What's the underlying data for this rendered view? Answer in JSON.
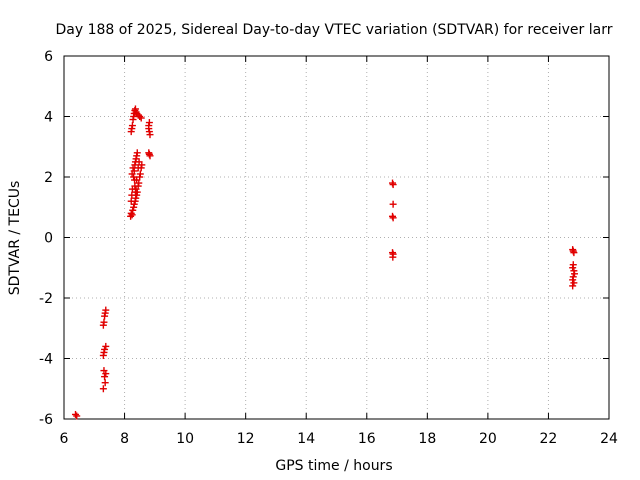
{
  "chart_data": {
    "type": "scatter",
    "title": "Day 188 of 2025, Sidereal Day-to-day VTEC variation (SDTVAR) for receiver larr",
    "xlabel": "GPS time / hours",
    "ylabel": "SDTVAR / TECUs",
    "xlim": [
      6,
      24
    ],
    "ylim": [
      -6,
      6
    ],
    "xticks": [
      6,
      8,
      10,
      12,
      14,
      16,
      18,
      20,
      22,
      24
    ],
    "yticks": [
      -6,
      -4,
      -2,
      0,
      2,
      4,
      6
    ],
    "xtick_labels": [
      "6",
      "8",
      "10",
      "12",
      "14",
      "16",
      "18",
      "20",
      "22",
      "24"
    ],
    "ytick_labels": [
      "-6",
      "-4",
      "-2",
      "0",
      "2",
      "4",
      "6"
    ],
    "grid": true,
    "marker": "+",
    "color": "#e00000",
    "series": [
      {
        "name": "SDTVAR",
        "points": [
          [
            6.38,
            -5.85
          ],
          [
            6.42,
            -5.9
          ],
          [
            7.32,
            -2.8
          ],
          [
            7.34,
            -2.6
          ],
          [
            7.36,
            -2.5
          ],
          [
            7.38,
            -2.4
          ],
          [
            7.3,
            -2.9
          ],
          [
            7.32,
            -3.8
          ],
          [
            7.34,
            -3.7
          ],
          [
            7.38,
            -3.6
          ],
          [
            7.3,
            -3.9
          ],
          [
            7.32,
            -4.4
          ],
          [
            7.34,
            -4.6
          ],
          [
            7.36,
            -4.8
          ],
          [
            7.3,
            -5.0
          ],
          [
            7.38,
            -4.5
          ],
          [
            8.2,
            0.7
          ],
          [
            8.22,
            0.8
          ],
          [
            8.25,
            0.75
          ],
          [
            8.27,
            0.9
          ],
          [
            8.3,
            1.0
          ],
          [
            8.32,
            1.1
          ],
          [
            8.35,
            1.2
          ],
          [
            8.37,
            1.3
          ],
          [
            8.4,
            1.4
          ],
          [
            8.42,
            1.5
          ],
          [
            8.45,
            1.7
          ],
          [
            8.47,
            1.8
          ],
          [
            8.5,
            2.0
          ],
          [
            8.52,
            2.1
          ],
          [
            8.55,
            2.3
          ],
          [
            8.57,
            2.4
          ],
          [
            8.3,
            2.0
          ],
          [
            8.32,
            2.2
          ],
          [
            8.34,
            2.4
          ],
          [
            8.36,
            2.5
          ],
          [
            8.38,
            2.6
          ],
          [
            8.4,
            2.7
          ],
          [
            8.42,
            2.8
          ],
          [
            8.28,
            2.3
          ],
          [
            8.25,
            2.1
          ],
          [
            8.22,
            1.2
          ],
          [
            8.24,
            1.4
          ],
          [
            8.26,
            1.6
          ],
          [
            8.45,
            2.3
          ],
          [
            8.48,
            2.5
          ],
          [
            8.4,
            1.9
          ],
          [
            8.38,
            1.6
          ],
          [
            8.36,
            1.5
          ],
          [
            8.34,
            1.7
          ],
          [
            8.33,
            1.9
          ],
          [
            8.22,
            3.5
          ],
          [
            8.24,
            3.6
          ],
          [
            8.26,
            3.7
          ],
          [
            8.28,
            3.9
          ],
          [
            8.3,
            4.0
          ],
          [
            8.32,
            4.1
          ],
          [
            8.34,
            4.2
          ],
          [
            8.36,
            4.25
          ],
          [
            8.38,
            4.15
          ],
          [
            8.4,
            4.1
          ],
          [
            8.45,
            4.05
          ],
          [
            8.5,
            4.0
          ],
          [
            8.55,
            3.95
          ],
          [
            8.8,
            3.6
          ],
          [
            8.82,
            3.5
          ],
          [
            8.84,
            3.4
          ],
          [
            8.8,
            3.7
          ],
          [
            8.82,
            3.8
          ],
          [
            8.8,
            2.8
          ],
          [
            8.82,
            2.75
          ],
          [
            8.84,
            2.7
          ],
          [
            16.85,
            1.8
          ],
          [
            16.87,
            1.75
          ],
          [
            16.87,
            1.1
          ],
          [
            16.85,
            0.7
          ],
          [
            16.87,
            0.65
          ],
          [
            16.85,
            -0.5
          ],
          [
            16.87,
            -0.55
          ],
          [
            16.86,
            -0.65
          ],
          [
            22.8,
            -0.4
          ],
          [
            22.82,
            -0.45
          ],
          [
            22.84,
            -0.5
          ],
          [
            22.82,
            -0.9
          ],
          [
            22.8,
            -1.0
          ],
          [
            22.84,
            -1.1
          ],
          [
            22.86,
            -1.2
          ],
          [
            22.82,
            -1.3
          ],
          [
            22.8,
            -1.4
          ],
          [
            22.84,
            -1.5
          ],
          [
            22.8,
            -1.6
          ]
        ]
      }
    ]
  }
}
